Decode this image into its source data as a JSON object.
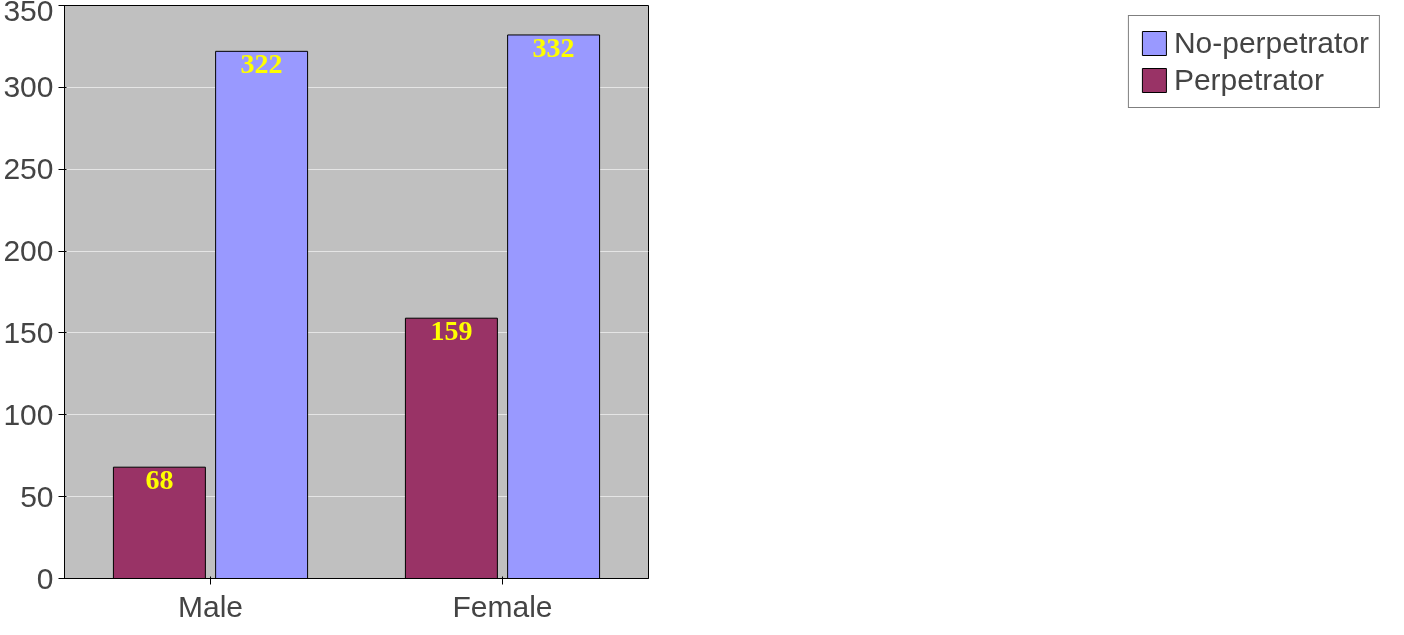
{
  "chart_data": {
    "type": "bar",
    "categories": [
      "Male",
      "Female"
    ],
    "series": [
      {
        "name": "Perpetrator",
        "color": "#993366",
        "values": [
          68,
          159
        ]
      },
      {
        "name": "No-perpetrator",
        "color": "#9999ff",
        "values": [
          322,
          332
        ]
      }
    ],
    "ylim": [
      0,
      350
    ],
    "yticks": [
      0,
      50,
      100,
      150,
      200,
      250,
      300,
      350
    ],
    "grid": "y",
    "legend": "right",
    "data_labels": true
  }
}
